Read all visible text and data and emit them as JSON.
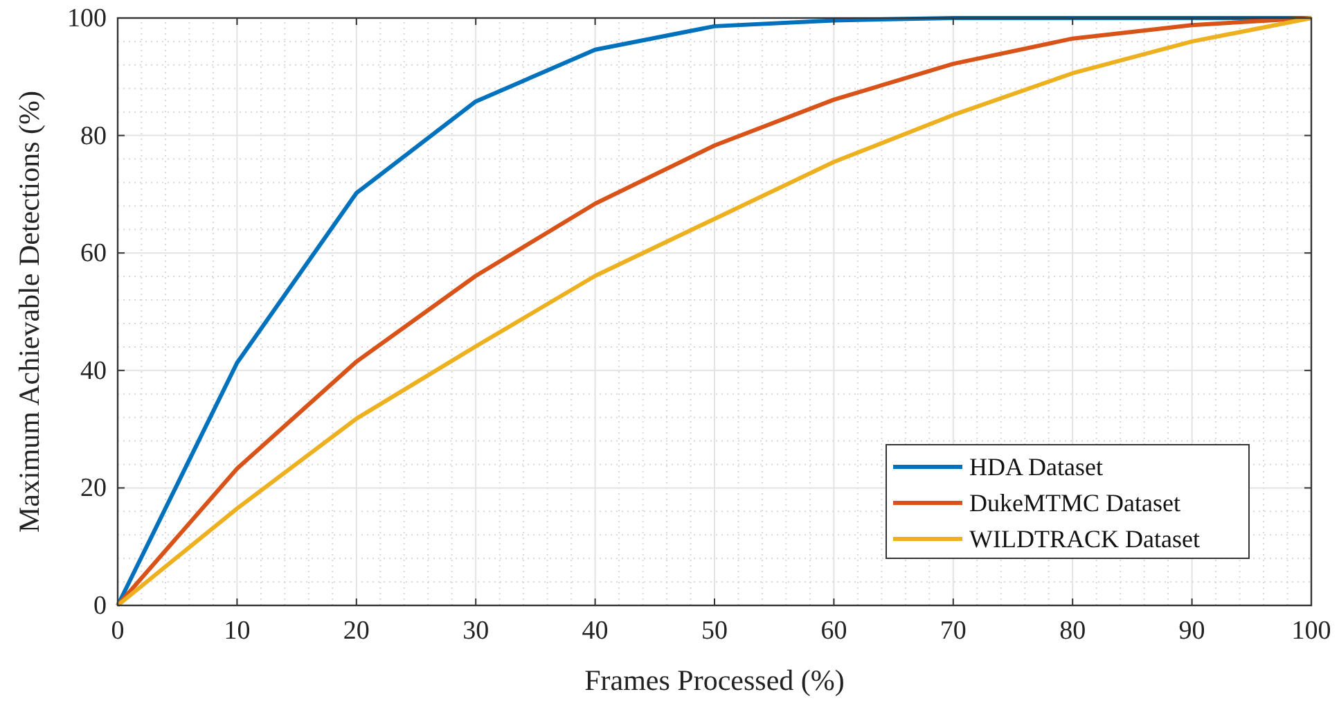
{
  "chart_data": {
    "type": "line",
    "xlabel": "Frames Processed (%)",
    "ylabel": "Maximum Achievable Detections (%)",
    "x": [
      0,
      10,
      20,
      30,
      40,
      50,
      60,
      70,
      80,
      90,
      100
    ],
    "series": [
      {
        "name": "HDA Dataset",
        "color": "#0072bd",
        "values": [
          0,
          41.3,
          70.2,
          85.8,
          94.6,
          98.6,
          99.6,
          100,
          100,
          100,
          100
        ]
      },
      {
        "name": "DukeMTMC Dataset",
        "color": "#d95319",
        "values": [
          0,
          23.3,
          41.5,
          56.1,
          68.4,
          78.3,
          86.1,
          92.2,
          96.5,
          98.8,
          100
        ]
      },
      {
        "name": "WILDTRACK Dataset",
        "color": "#edb120",
        "values": [
          0,
          16.5,
          31.8,
          44.1,
          56.1,
          65.8,
          75.5,
          83.5,
          90.6,
          96.0,
          100
        ]
      }
    ],
    "xlim": [
      0,
      100
    ],
    "xticks": [
      0,
      10,
      20,
      30,
      40,
      50,
      60,
      70,
      80,
      90,
      100
    ],
    "ylim": [
      0,
      100
    ],
    "yticks": [
      0,
      20,
      40,
      60,
      80,
      100
    ],
    "grid": true,
    "legend": "bottom right",
    "marker": "none",
    "line_style": "solid"
  }
}
